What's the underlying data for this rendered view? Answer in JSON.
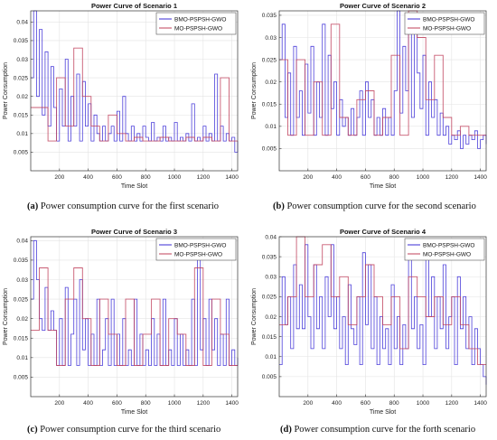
{
  "figure": {
    "captions": [
      {
        "label": "(a)",
        "text": " Power consumption curve for the first scenario"
      },
      {
        "label": "(b)",
        "text": " Power consumption curve for the second scenario"
      },
      {
        "label": "(c)",
        "text": " Power consumption curve for the third scenario"
      },
      {
        "label": "(d)",
        "text": " Power consumption curve for the forth scenario"
      }
    ]
  },
  "chart_data": [
    {
      "type": "line",
      "title": "Power Curve of Scenario 1",
      "xlabel": "Time Slot",
      "ylabel": "Power Consumption",
      "xlim": [
        0,
        1440
      ],
      "ylim": [
        0,
        0.043
      ],
      "xticks": [
        200,
        400,
        600,
        800,
        1000,
        1200,
        1400
      ],
      "yticks": [
        0.005,
        0.01,
        0.015,
        0.02,
        0.025,
        0.03,
        0.035,
        0.04
      ],
      "grid": true,
      "legend_position": "top-right",
      "series": [
        {
          "name": "BMO-PSPSH-GWO",
          "color": "#3a2bd6",
          "x": [
            0,
            20,
            40,
            60,
            80,
            100,
            120,
            140,
            160,
            180,
            200,
            220,
            240,
            260,
            280,
            300,
            320,
            340,
            360,
            380,
            400,
            420,
            440,
            460,
            480,
            500,
            520,
            540,
            560,
            580,
            600,
            620,
            640,
            660,
            680,
            700,
            720,
            740,
            760,
            780,
            800,
            820,
            840,
            860,
            880,
            900,
            920,
            940,
            960,
            980,
            1000,
            1020,
            1040,
            1060,
            1080,
            1100,
            1120,
            1140,
            1160,
            1180,
            1200,
            1220,
            1240,
            1260,
            1280,
            1300,
            1320,
            1340,
            1360,
            1380,
            1400,
            1420,
            1440
          ],
          "values": [
            0.025,
            0.043,
            0.02,
            0.038,
            0.015,
            0.032,
            0.012,
            0.028,
            0.017,
            0.008,
            0.022,
            0.012,
            0.03,
            0.008,
            0.02,
            0.012,
            0.026,
            0.008,
            0.024,
            0.012,
            0.018,
            0.008,
            0.015,
            0.01,
            0.008,
            0.012,
            0.008,
            0.01,
            0.012,
            0.008,
            0.016,
            0.008,
            0.02,
            0.01,
            0.008,
            0.012,
            0.008,
            0.01,
            0.008,
            0.012,
            0.009,
            0.008,
            0.013,
            0.008,
            0.009,
            0.008,
            0.012,
            0.008,
            0.009,
            0.008,
            0.013,
            0.008,
            0.009,
            0.008,
            0.01,
            0.008,
            0.018,
            0.008,
            0.009,
            0.008,
            0.012,
            0.008,
            0.01,
            0.008,
            0.026,
            0.008,
            0.012,
            0.008,
            0.01,
            0.008,
            0.009,
            0.005,
            0.008
          ]
        },
        {
          "name": "MO-PSPSH-GWO",
          "color": "#c0405a",
          "x": [
            0,
            60,
            120,
            180,
            240,
            300,
            360,
            420,
            480,
            540,
            600,
            660,
            720,
            780,
            840,
            900,
            960,
            1020,
            1080,
            1140,
            1200,
            1260,
            1320,
            1380,
            1440
          ],
          "values": [
            0.017,
            0.017,
            0.008,
            0.025,
            0.012,
            0.033,
            0.02,
            0.012,
            0.008,
            0.015,
            0.01,
            0.008,
            0.009,
            0.008,
            0.008,
            0.009,
            0.008,
            0.008,
            0.009,
            0.008,
            0.009,
            0.008,
            0.025,
            0.008,
            0.008
          ]
        }
      ]
    },
    {
      "type": "line",
      "title": "Power Curve of Scenario 2",
      "xlabel": "Time Slot",
      "ylabel": "Power Consumption",
      "xlim": [
        0,
        1440
      ],
      "ylim": [
        0,
        0.036
      ],
      "xticks": [
        200,
        400,
        600,
        800,
        1000,
        1200,
        1400
      ],
      "yticks": [
        0.005,
        0.01,
        0.015,
        0.02,
        0.025,
        0.03,
        0.035
      ],
      "grid": true,
      "legend_position": "top-right",
      "series": [
        {
          "name": "BMO-PSPSH-GWO",
          "color": "#3a2bd6",
          "x": [
            0,
            20,
            40,
            60,
            80,
            100,
            120,
            140,
            160,
            180,
            200,
            220,
            240,
            260,
            280,
            300,
            320,
            340,
            360,
            380,
            400,
            420,
            440,
            460,
            480,
            500,
            520,
            540,
            560,
            580,
            600,
            620,
            640,
            660,
            680,
            700,
            720,
            740,
            760,
            780,
            800,
            820,
            840,
            860,
            880,
            900,
            920,
            940,
            960,
            980,
            1000,
            1020,
            1040,
            1060,
            1080,
            1100,
            1120,
            1140,
            1160,
            1180,
            1200,
            1220,
            1240,
            1260,
            1280,
            1300,
            1320,
            1340,
            1360,
            1380,
            1400,
            1420,
            1440
          ],
          "values": [
            0.025,
            0.033,
            0.012,
            0.022,
            0.008,
            0.028,
            0.012,
            0.018,
            0.008,
            0.024,
            0.013,
            0.028,
            0.008,
            0.02,
            0.012,
            0.033,
            0.008,
            0.026,
            0.014,
            0.02,
            0.008,
            0.016,
            0.01,
            0.012,
            0.008,
            0.014,
            0.008,
            0.012,
            0.018,
            0.008,
            0.02,
            0.012,
            0.016,
            0.008,
            0.012,
            0.008,
            0.014,
            0.008,
            0.012,
            0.008,
            0.018,
            0.036,
            0.013,
            0.028,
            0.018,
            0.035,
            0.012,
            0.032,
            0.022,
            0.014,
            0.026,
            0.008,
            0.02,
            0.012,
            0.016,
            0.008,
            0.013,
            0.008,
            0.01,
            0.006,
            0.008,
            0.007,
            0.009,
            0.005,
            0.008,
            0.006,
            0.008,
            0.007,
            0.009,
            0.005,
            0.007,
            0.008,
            0.006
          ]
        },
        {
          "name": "MO-PSPSH-GWO",
          "color": "#c0405a",
          "x": [
            0,
            60,
            120,
            180,
            240,
            300,
            360,
            420,
            480,
            540,
            600,
            660,
            720,
            780,
            840,
            900,
            960,
            1020,
            1080,
            1140,
            1200,
            1260,
            1320,
            1380,
            1440
          ],
          "values": [
            0.025,
            0.008,
            0.025,
            0.008,
            0.02,
            0.008,
            0.033,
            0.012,
            0.008,
            0.016,
            0.018,
            0.008,
            0.012,
            0.026,
            0.008,
            0.036,
            0.03,
            0.016,
            0.026,
            0.012,
            0.008,
            0.01,
            0.008,
            0.008,
            0.008
          ]
        }
      ]
    },
    {
      "type": "line",
      "title": "Power Curve of Scenario 3",
      "xlabel": "Time Slot",
      "ylabel": "Power Consumption",
      "xlim": [
        0,
        1440
      ],
      "ylim": [
        0,
        0.041
      ],
      "xticks": [
        200,
        400,
        600,
        800,
        1000,
        1200,
        1400
      ],
      "yticks": [
        0.005,
        0.01,
        0.015,
        0.02,
        0.025,
        0.03,
        0.035,
        0.04
      ],
      "grid": true,
      "legend_position": "top-right",
      "series": [
        {
          "name": "BMO-PSPSH-GWO",
          "color": "#3a2bd6",
          "x": [
            0,
            20,
            40,
            60,
            80,
            100,
            120,
            140,
            160,
            180,
            200,
            220,
            240,
            260,
            280,
            300,
            320,
            340,
            360,
            380,
            400,
            420,
            440,
            460,
            480,
            500,
            520,
            540,
            560,
            580,
            600,
            620,
            640,
            660,
            680,
            700,
            720,
            740,
            760,
            780,
            800,
            820,
            840,
            860,
            880,
            900,
            920,
            940,
            960,
            980,
            1000,
            1020,
            1040,
            1060,
            1080,
            1100,
            1120,
            1140,
            1160,
            1180,
            1200,
            1220,
            1240,
            1260,
            1280,
            1300,
            1320,
            1340,
            1360,
            1380,
            1400,
            1420,
            1440
          ],
          "values": [
            0.025,
            0.04,
            0.03,
            0.02,
            0.017,
            0.028,
            0.017,
            0.022,
            0.017,
            0.008,
            0.02,
            0.008,
            0.028,
            0.008,
            0.016,
            0.025,
            0.008,
            0.03,
            0.012,
            0.02,
            0.008,
            0.016,
            0.008,
            0.025,
            0.008,
            0.012,
            0.02,
            0.008,
            0.025,
            0.008,
            0.016,
            0.008,
            0.02,
            0.008,
            0.012,
            0.008,
            0.025,
            0.008,
            0.016,
            0.008,
            0.012,
            0.008,
            0.02,
            0.008,
            0.016,
            0.008,
            0.025,
            0.008,
            0.012,
            0.008,
            0.02,
            0.008,
            0.016,
            0.008,
            0.012,
            0.008,
            0.025,
            0.008,
            0.035,
            0.012,
            0.02,
            0.008,
            0.025,
            0.012,
            0.02,
            0.008,
            0.016,
            0.008,
            0.025,
            0.008,
            0.012,
            0.008,
            0.01
          ]
        },
        {
          "name": "MO-PSPSH-GWO",
          "color": "#c0405a",
          "x": [
            0,
            60,
            120,
            180,
            240,
            300,
            360,
            420,
            480,
            540,
            600,
            660,
            720,
            780,
            840,
            900,
            960,
            1020,
            1080,
            1140,
            1200,
            1260,
            1320,
            1380,
            1440
          ],
          "values": [
            0.017,
            0.033,
            0.017,
            0.008,
            0.025,
            0.033,
            0.02,
            0.008,
            0.025,
            0.016,
            0.008,
            0.025,
            0.008,
            0.016,
            0.025,
            0.008,
            0.02,
            0.016,
            0.008,
            0.033,
            0.008,
            0.025,
            0.016,
            0.008,
            0.008
          ]
        }
      ]
    },
    {
      "type": "line",
      "title": "Power Curve of Scenario 4",
      "xlabel": "Time Slot",
      "ylabel": "Power Consumption",
      "xlim": [
        0,
        1440
      ],
      "ylim": [
        0,
        0.04
      ],
      "xticks": [
        200,
        400,
        600,
        800,
        1000,
        1200,
        1400
      ],
      "yticks": [
        0.005,
        0.01,
        0.015,
        0.02,
        0.025,
        0.03,
        0.035,
        0.04
      ],
      "grid": true,
      "legend_position": "top-right",
      "series": [
        {
          "name": "BMO-PSPSH-GWO",
          "color": "#3a2bd6",
          "x": [
            0,
            20,
            40,
            60,
            80,
            100,
            120,
            140,
            160,
            180,
            200,
            220,
            240,
            260,
            280,
            300,
            320,
            340,
            360,
            380,
            400,
            420,
            440,
            460,
            480,
            500,
            520,
            540,
            560,
            580,
            600,
            620,
            640,
            660,
            680,
            700,
            720,
            740,
            760,
            780,
            800,
            820,
            840,
            860,
            880,
            900,
            920,
            940,
            960,
            980,
            1000,
            1020,
            1040,
            1060,
            1080,
            1100,
            1120,
            1140,
            1160,
            1180,
            1200,
            1220,
            1240,
            1260,
            1280,
            1300,
            1320,
            1340,
            1360,
            1380,
            1400,
            1420,
            1440
          ],
          "values": [
            0.008,
            0.03,
            0.018,
            0.025,
            0.012,
            0.033,
            0.017,
            0.028,
            0.017,
            0.038,
            0.02,
            0.012,
            0.033,
            0.017,
            0.025,
            0.012,
            0.03,
            0.02,
            0.038,
            0.017,
            0.025,
            0.012,
            0.02,
            0.008,
            0.028,
            0.017,
            0.013,
            0.025,
            0.008,
            0.036,
            0.018,
            0.033,
            0.012,
            0.025,
            0.008,
            0.02,
            0.012,
            0.017,
            0.008,
            0.028,
            0.012,
            0.02,
            0.008,
            0.018,
            0.012,
            0.035,
            0.017,
            0.025,
            0.012,
            0.018,
            0.008,
            0.036,
            0.02,
            0.03,
            0.012,
            0.025,
            0.017,
            0.033,
            0.012,
            0.02,
            0.025,
            0.008,
            0.03,
            0.017,
            0.025,
            0.012,
            0.02,
            0.008,
            0.017,
            0.012,
            0.008,
            0.005,
            0.003
          ]
        },
        {
          "name": "MO-PSPSH-GWO",
          "color": "#c0405a",
          "x": [
            0,
            60,
            120,
            180,
            240,
            300,
            360,
            420,
            480,
            540,
            600,
            660,
            720,
            780,
            840,
            900,
            960,
            1020,
            1080,
            1140,
            1200,
            1260,
            1320,
            1380,
            1440
          ],
          "values": [
            0.018,
            0.025,
            0.04,
            0.025,
            0.033,
            0.038,
            0.025,
            0.03,
            0.018,
            0.025,
            0.033,
            0.025,
            0.018,
            0.025,
            0.012,
            0.03,
            0.025,
            0.02,
            0.025,
            0.018,
            0.025,
            0.018,
            0.012,
            0.008,
            0.008
          ]
        }
      ]
    }
  ]
}
